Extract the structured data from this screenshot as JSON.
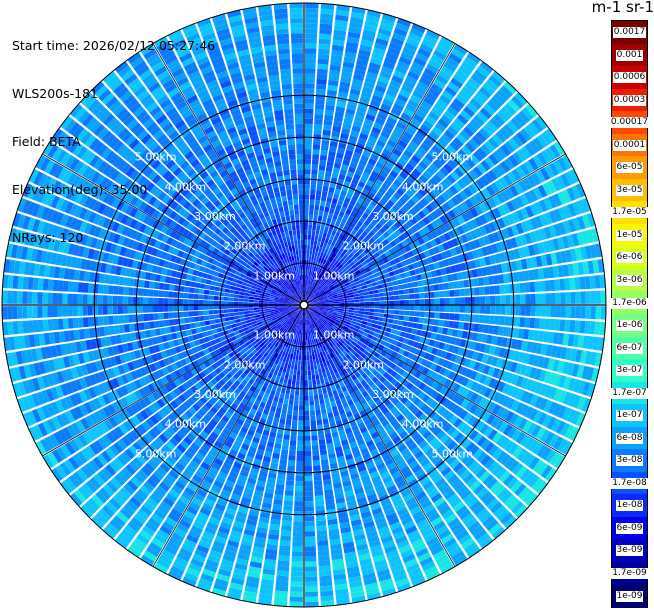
{
  "info": {
    "start_time": "Start time: 2026/02/12 05:27:46",
    "instrument": "WLS200s-181",
    "field": "Field: BETA",
    "elevation": "Elevation(deg): 35.00",
    "nrays": "NRays: 120"
  },
  "colorbar": {
    "units_label": "m-1 sr-1",
    "ticks": [
      "0.0017",
      "0.001",
      "0.0006",
      "0.0003",
      "0.00017",
      "0.0001",
      "6e-05",
      "3e-05",
      "1.7e-05",
      "1e-05",
      "6e-06",
      "3e-06",
      "1.7e-06",
      "1e-06",
      "6e-07",
      "3e-07",
      "1.7e-07",
      "1e-07",
      "6e-08",
      "3e-08",
      "1.7e-08",
      "1e-08",
      "6e-09",
      "3e-09",
      "1.7e-09",
      "1e-09"
    ],
    "colors": [
      "#7a0000",
      "#9e0000",
      "#c80000",
      "#ee1c00",
      "#ff4a00",
      "#ff7400",
      "#ff9a00",
      "#ffbd00",
      "#ffe000",
      "#f7f700",
      "#dcff1a",
      "#b8ff3e",
      "#93ff63",
      "#72ff84",
      "#4effa8",
      "#2effc9",
      "#18e6e6",
      "#0cc4ff",
      "#0aa2ff",
      "#0a7aff",
      "#0a52ff",
      "#0a2aff",
      "#0000ee",
      "#0000c2",
      "#000099",
      "#000070"
    ]
  },
  "chart_data": {
    "type": "ppi",
    "field": "BETA",
    "elevation_deg": 35.0,
    "n_rays": 120,
    "ring_labels": [
      "1.00km",
      "2.00km",
      "3.00km",
      "4.00km",
      "5.00km"
    ],
    "range_rings_km": [
      1,
      2,
      3,
      4,
      5
    ],
    "max_range_km": 7.2,
    "scale": "log",
    "value_range": [
      1e-09,
      0.0017
    ],
    "pattern": "Backscatter mostly 1e-08 to 1e-07 throughout; lowest values (~1e-08 to 3e-08) concentrated within ~2 km of the lidar; highest values (~1e-07 to 3e-07) near the outer edge, strongest to the south-east."
  }
}
